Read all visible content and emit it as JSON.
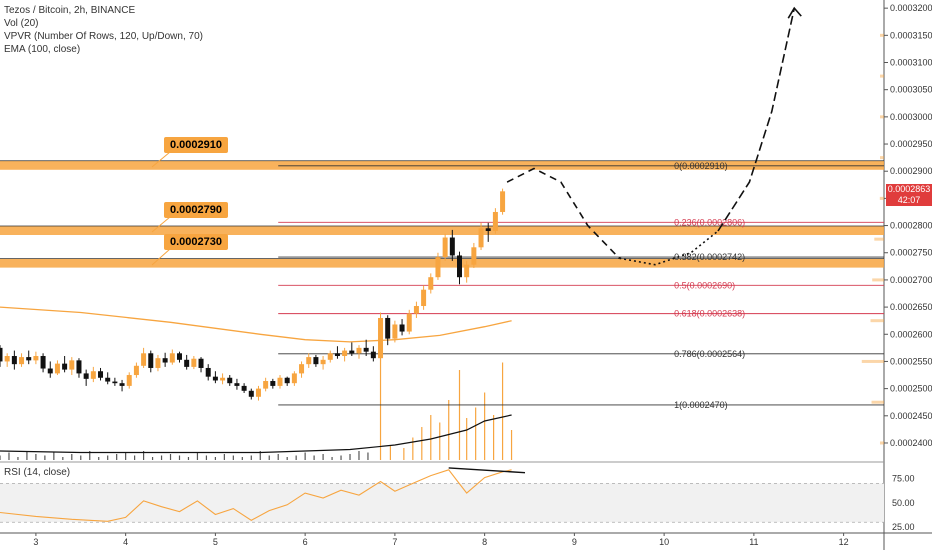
{
  "chart_data": {
    "type": "candlestick",
    "title": "Tezos / Bitcoin, 2h, BINANCE",
    "indicators": [
      "Vol (20)",
      "VPVR (Number Of Rows, 120, Up/Down, 70)",
      "EMA (100, close)"
    ],
    "price_axis": {
      "ticks": [
        "0.0003200",
        "0.0003150",
        "0.0003100",
        "0.0003050",
        "0.0003000",
        "0.0002950",
        "0.0002900",
        "0.0002850",
        "0.0002800",
        "0.0002750",
        "0.0002700",
        "0.0002650",
        "0.0002600",
        "0.0002550",
        "0.0002500",
        "0.0002450",
        "0.0002400"
      ],
      "ylim": [
        0.0002365,
        0.0003215
      ]
    },
    "x_axis": {
      "ticks": [
        "3",
        "4",
        "5",
        "6",
        "7",
        "8",
        "9",
        "10",
        "11",
        "12"
      ],
      "range": [
        2.6,
        12.45
      ]
    },
    "current_price": {
      "value": "0.0002863",
      "countdown": "42:07",
      "color": "#e03c3c"
    },
    "zones": [
      {
        "label": "0.0002910",
        "value": 0.000291
      },
      {
        "label": "0.0002790",
        "value": 0.000279
      },
      {
        "label": "0.0002730",
        "value": 0.000273
      }
    ],
    "fib_levels": [
      {
        "label": "0(0.0002910)",
        "value": 0.000291,
        "color": "#333333"
      },
      {
        "label": "0.236(0.0002806)",
        "value": 0.0002806,
        "color": "#d43a4f"
      },
      {
        "label": "0.382(0.0002742)",
        "value": 0.0002742,
        "color": "#333333"
      },
      {
        "label": "0.5(0.0002690)",
        "value": 0.000269,
        "color": "#d43a4f"
      },
      {
        "label": "0.618(0.0002638)",
        "value": 0.0002638,
        "color": "#d43a4f"
      },
      {
        "label": "0.786(0.0002564)",
        "value": 0.0002564,
        "color": "#333333"
      },
      {
        "label": "1(0.0002470)",
        "value": 0.000247,
        "color": "#333333"
      }
    ],
    "candles": [
      {
        "t": 2.6,
        "o": 0.0002575,
        "h": 0.000258,
        "l": 0.000254,
        "c": 0.000255
      },
      {
        "t": 2.68,
        "o": 0.000255,
        "h": 0.0002565,
        "l": 0.000254,
        "c": 0.000256
      },
      {
        "t": 2.76,
        "o": 0.000256,
        "h": 0.000257,
        "l": 0.0002535,
        "c": 0.0002545
      },
      {
        "t": 2.84,
        "o": 0.0002545,
        "h": 0.0002565,
        "l": 0.000254,
        "c": 0.0002558
      },
      {
        "t": 2.92,
        "o": 0.0002558,
        "h": 0.000257,
        "l": 0.0002545,
        "c": 0.0002552
      },
      {
        "t": 3.0,
        "o": 0.0002552,
        "h": 0.0002568,
        "l": 0.0002545,
        "c": 0.000256
      },
      {
        "t": 3.08,
        "o": 0.000256,
        "h": 0.0002565,
        "l": 0.000253,
        "c": 0.0002537
      },
      {
        "t": 3.16,
        "o": 0.0002537,
        "h": 0.000255,
        "l": 0.000252,
        "c": 0.0002528
      },
      {
        "t": 3.24,
        "o": 0.0002528,
        "h": 0.0002552,
        "l": 0.0002525,
        "c": 0.0002546
      },
      {
        "t": 3.32,
        "o": 0.0002546,
        "h": 0.000256,
        "l": 0.000253,
        "c": 0.0002535
      },
      {
        "t": 3.4,
        "o": 0.0002535,
        "h": 0.0002558,
        "l": 0.0002525,
        "c": 0.0002552
      },
      {
        "t": 3.48,
        "o": 0.0002552,
        "h": 0.0002556,
        "l": 0.000252,
        "c": 0.0002528
      },
      {
        "t": 3.56,
        "o": 0.0002528,
        "h": 0.0002535,
        "l": 0.0002505,
        "c": 0.0002518
      },
      {
        "t": 3.64,
        "o": 0.0002518,
        "h": 0.000254,
        "l": 0.0002512,
        "c": 0.0002532
      },
      {
        "t": 3.72,
        "o": 0.0002532,
        "h": 0.0002538,
        "l": 0.0002515,
        "c": 0.000252
      },
      {
        "t": 3.8,
        "o": 0.000252,
        "h": 0.000253,
        "l": 0.0002508,
        "c": 0.0002513
      },
      {
        "t": 3.88,
        "o": 0.0002513,
        "h": 0.000252,
        "l": 0.0002505,
        "c": 0.000251
      },
      {
        "t": 3.96,
        "o": 0.000251,
        "h": 0.0002516,
        "l": 0.0002495,
        "c": 0.0002505
      },
      {
        "t": 4.04,
        "o": 0.0002505,
        "h": 0.000253,
        "l": 0.00025,
        "c": 0.0002525
      },
      {
        "t": 4.12,
        "o": 0.0002525,
        "h": 0.0002548,
        "l": 0.000252,
        "c": 0.0002542
      },
      {
        "t": 4.2,
        "o": 0.0002542,
        "h": 0.0002575,
        "l": 0.0002538,
        "c": 0.0002565
      },
      {
        "t": 4.28,
        "o": 0.0002565,
        "h": 0.000257,
        "l": 0.000253,
        "c": 0.0002538
      },
      {
        "t": 4.36,
        "o": 0.0002538,
        "h": 0.0002562,
        "l": 0.0002532,
        "c": 0.0002556
      },
      {
        "t": 4.44,
        "o": 0.0002556,
        "h": 0.0002566,
        "l": 0.000254,
        "c": 0.0002548
      },
      {
        "t": 4.52,
        "o": 0.0002548,
        "h": 0.0002572,
        "l": 0.0002544,
        "c": 0.0002565
      },
      {
        "t": 4.6,
        "o": 0.0002565,
        "h": 0.0002568,
        "l": 0.0002548,
        "c": 0.0002553
      },
      {
        "t": 4.68,
        "o": 0.0002553,
        "h": 0.0002562,
        "l": 0.0002535,
        "c": 0.000254
      },
      {
        "t": 4.76,
        "o": 0.000254,
        "h": 0.000256,
        "l": 0.0002536,
        "c": 0.0002555
      },
      {
        "t": 4.84,
        "o": 0.0002555,
        "h": 0.0002558,
        "l": 0.000253,
        "c": 0.0002538
      },
      {
        "t": 4.92,
        "o": 0.0002538,
        "h": 0.0002545,
        "l": 0.0002515,
        "c": 0.0002522
      },
      {
        "t": 5.0,
        "o": 0.0002522,
        "h": 0.0002532,
        "l": 0.000251,
        "c": 0.0002515
      },
      {
        "t": 5.08,
        "o": 0.0002515,
        "h": 0.0002528,
        "l": 0.0002508,
        "c": 0.000252
      },
      {
        "t": 5.16,
        "o": 0.000252,
        "h": 0.0002525,
        "l": 0.0002505,
        "c": 0.000251
      },
      {
        "t": 5.24,
        "o": 0.000251,
        "h": 0.0002518,
        "l": 0.0002498,
        "c": 0.0002505
      },
      {
        "t": 5.32,
        "o": 0.0002505,
        "h": 0.000251,
        "l": 0.0002492,
        "c": 0.0002496
      },
      {
        "t": 5.4,
        "o": 0.0002496,
        "h": 0.00025,
        "l": 0.000248,
        "c": 0.0002485
      },
      {
        "t": 5.48,
        "o": 0.0002485,
        "h": 0.0002505,
        "l": 0.0002478,
        "c": 0.00025
      },
      {
        "t": 5.56,
        "o": 0.00025,
        "h": 0.000252,
        "l": 0.0002495,
        "c": 0.0002514
      },
      {
        "t": 5.64,
        "o": 0.0002514,
        "h": 0.0002518,
        "l": 0.00025,
        "c": 0.0002505
      },
      {
        "t": 5.72,
        "o": 0.0002505,
        "h": 0.0002525,
        "l": 0.00025,
        "c": 0.000252
      },
      {
        "t": 5.8,
        "o": 0.000252,
        "h": 0.0002522,
        "l": 0.0002505,
        "c": 0.000251
      },
      {
        "t": 5.88,
        "o": 0.000251,
        "h": 0.0002532,
        "l": 0.0002505,
        "c": 0.0002528
      },
      {
        "t": 5.96,
        "o": 0.0002528,
        "h": 0.000255,
        "l": 0.000252,
        "c": 0.0002545
      },
      {
        "t": 6.04,
        "o": 0.0002545,
        "h": 0.0002565,
        "l": 0.0002538,
        "c": 0.0002558
      },
      {
        "t": 6.12,
        "o": 0.0002558,
        "h": 0.0002562,
        "l": 0.000254,
        "c": 0.0002545
      },
      {
        "t": 6.2,
        "o": 0.0002545,
        "h": 0.000256,
        "l": 0.0002535,
        "c": 0.0002553
      },
      {
        "t": 6.28,
        "o": 0.0002553,
        "h": 0.000257,
        "l": 0.0002548,
        "c": 0.0002565
      },
      {
        "t": 6.36,
        "o": 0.0002565,
        "h": 0.0002578,
        "l": 0.0002555,
        "c": 0.000256
      },
      {
        "t": 6.44,
        "o": 0.000256,
        "h": 0.0002575,
        "l": 0.000255,
        "c": 0.000257
      },
      {
        "t": 6.52,
        "o": 0.000257,
        "h": 0.0002585,
        "l": 0.000256,
        "c": 0.0002565
      },
      {
        "t": 6.6,
        "o": 0.0002565,
        "h": 0.000258,
        "l": 0.0002555,
        "c": 0.0002575
      },
      {
        "t": 6.68,
        "o": 0.0002575,
        "h": 0.000259,
        "l": 0.000256,
        "c": 0.0002568
      },
      {
        "t": 6.76,
        "o": 0.0002568,
        "h": 0.0002578,
        "l": 0.000255,
        "c": 0.0002556
      },
      {
        "t": 6.84,
        "o": 0.0002556,
        "h": 0.000264,
        "l": 0.000255,
        "c": 0.000263
      },
      {
        "t": 6.92,
        "o": 0.000263,
        "h": 0.0002635,
        "l": 0.000258,
        "c": 0.0002592
      },
      {
        "t": 7.0,
        "o": 0.0002592,
        "h": 0.0002625,
        "l": 0.0002585,
        "c": 0.0002618
      },
      {
        "t": 7.08,
        "o": 0.0002618,
        "h": 0.0002628,
        "l": 0.0002598,
        "c": 0.0002605
      },
      {
        "t": 7.16,
        "o": 0.0002605,
        "h": 0.0002645,
        "l": 0.00026,
        "c": 0.0002638
      },
      {
        "t": 7.24,
        "o": 0.0002638,
        "h": 0.000266,
        "l": 0.000263,
        "c": 0.0002652
      },
      {
        "t": 7.32,
        "o": 0.0002652,
        "h": 0.000269,
        "l": 0.0002645,
        "c": 0.0002682
      },
      {
        "t": 7.4,
        "o": 0.0002682,
        "h": 0.0002712,
        "l": 0.0002675,
        "c": 0.0002705
      },
      {
        "t": 7.48,
        "o": 0.0002705,
        "h": 0.000275,
        "l": 0.00027,
        "c": 0.0002742
      },
      {
        "t": 7.56,
        "o": 0.0002742,
        "h": 0.0002785,
        "l": 0.0002735,
        "c": 0.0002778
      },
      {
        "t": 7.64,
        "o": 0.0002778,
        "h": 0.0002792,
        "l": 0.0002735,
        "c": 0.0002745
      },
      {
        "t": 7.72,
        "o": 0.0002745,
        "h": 0.0002752,
        "l": 0.0002692,
        "c": 0.0002705
      },
      {
        "t": 7.8,
        "o": 0.0002705,
        "h": 0.0002735,
        "l": 0.0002695,
        "c": 0.0002728
      },
      {
        "t": 7.88,
        "o": 0.0002728,
        "h": 0.0002768,
        "l": 0.0002722,
        "c": 0.000276
      },
      {
        "t": 7.96,
        "o": 0.000276,
        "h": 0.0002805,
        "l": 0.0002755,
        "c": 0.0002795
      },
      {
        "t": 8.04,
        "o": 0.0002795,
        "h": 0.0002805,
        "l": 0.000277,
        "c": 0.000279
      },
      {
        "t": 8.12,
        "o": 0.000279,
        "h": 0.0002832,
        "l": 0.0002785,
        "c": 0.0002825
      },
      {
        "t": 8.2,
        "o": 0.0002825,
        "h": 0.0002868,
        "l": 0.000282,
        "c": 0.0002863
      }
    ],
    "ema100": [
      [
        2.6,
        0.000265
      ],
      [
        3.5,
        0.000264
      ],
      [
        4.5,
        0.0002622
      ],
      [
        5.5,
        0.00026
      ],
      [
        6.0,
        0.000259
      ],
      [
        6.5,
        0.0002586
      ],
      [
        7.0,
        0.000259
      ],
      [
        7.5,
        0.0002598
      ],
      [
        8.0,
        0.0002614
      ],
      [
        8.3,
        0.0002625
      ]
    ],
    "projection_dashed": [
      [
        8.25,
        0.000288
      ],
      [
        8.55,
        0.0002905
      ],
      [
        8.85,
        0.000288
      ],
      [
        9.15,
        0.00028
      ],
      [
        9.5,
        0.000274
      ]
    ],
    "projection_dotted": [
      [
        9.5,
        0.000274
      ],
      [
        9.9,
        0.0002728
      ],
      [
        10.3,
        0.000275
      ],
      [
        10.6,
        0.000279
      ]
    ],
    "projection_up": [
      [
        10.6,
        0.000279
      ],
      [
        10.95,
        0.000288
      ],
      [
        11.2,
        0.000301
      ],
      [
        11.45,
        0.00032
      ]
    ],
    "rsi": {
      "label": "RSI (14, close)",
      "ticks": [
        "75.00",
        "50.00",
        "25.00"
      ],
      "ylim": [
        22,
        90
      ],
      "band": [
        30,
        70
      ],
      "values": [
        [
          2.6,
          40
        ],
        [
          3.0,
          36
        ],
        [
          3.4,
          33
        ],
        [
          3.8,
          31
        ],
        [
          4.0,
          35
        ],
        [
          4.2,
          52
        ],
        [
          4.4,
          46
        ],
        [
          4.6,
          41
        ],
        [
          4.8,
          52
        ],
        [
          5.0,
          38
        ],
        [
          5.2,
          44
        ],
        [
          5.4,
          32
        ],
        [
          5.6,
          42
        ],
        [
          5.8,
          48
        ],
        [
          6.0,
          60
        ],
        [
          6.2,
          55
        ],
        [
          6.4,
          63
        ],
        [
          6.6,
          58
        ],
        [
          6.84,
          72
        ],
        [
          7.0,
          62
        ],
        [
          7.2,
          70
        ],
        [
          7.4,
          78
        ],
        [
          7.6,
          84
        ],
        [
          7.7,
          72
        ],
        [
          7.8,
          60
        ],
        [
          8.0,
          76
        ],
        [
          8.2,
          82
        ],
        [
          8.3,
          84
        ]
      ],
      "divergence": [
        [
          7.6,
          86
        ],
        [
          8.45,
          81
        ]
      ]
    },
    "volume": [
      [
        2.6,
        3
      ],
      [
        2.7,
        5
      ],
      [
        2.8,
        2
      ],
      [
        2.9,
        6
      ],
      [
        3.0,
        4
      ],
      [
        3.1,
        3
      ],
      [
        3.2,
        5
      ],
      [
        3.3,
        2
      ],
      [
        3.4,
        4
      ],
      [
        3.5,
        3
      ],
      [
        3.6,
        6
      ],
      [
        3.7,
        2
      ],
      [
        3.8,
        3
      ],
      [
        3.9,
        4
      ],
      [
        4.0,
        5
      ],
      [
        4.1,
        3
      ],
      [
        4.2,
        6
      ],
      [
        4.3,
        2
      ],
      [
        4.4,
        3
      ],
      [
        4.5,
        4
      ],
      [
        4.6,
        3
      ],
      [
        4.7,
        2
      ],
      [
        4.8,
        5
      ],
      [
        4.9,
        3
      ],
      [
        5.0,
        2
      ],
      [
        5.1,
        4
      ],
      [
        5.2,
        3
      ],
      [
        5.3,
        2
      ],
      [
        5.4,
        3
      ],
      [
        5.5,
        6
      ],
      [
        5.6,
        3
      ],
      [
        5.7,
        4
      ],
      [
        5.8,
        2
      ],
      [
        5.9,
        3
      ],
      [
        6.0,
        5
      ],
      [
        6.1,
        3
      ],
      [
        6.2,
        4
      ],
      [
        6.3,
        2
      ],
      [
        6.4,
        3
      ],
      [
        6.5,
        4
      ],
      [
        6.6,
        6
      ],
      [
        6.7,
        5
      ],
      [
        6.84,
        68
      ],
      [
        6.95,
        10
      ],
      [
        7.1,
        8
      ],
      [
        7.2,
        15
      ],
      [
        7.3,
        22
      ],
      [
        7.4,
        30
      ],
      [
        7.5,
        25
      ],
      [
        7.6,
        40
      ],
      [
        7.72,
        60
      ],
      [
        7.8,
        28
      ],
      [
        7.9,
        35
      ],
      [
        8.0,
        45
      ],
      [
        8.1,
        30
      ],
      [
        8.2,
        65
      ],
      [
        8.3,
        20
      ]
    ],
    "vol_ma": [
      [
        2.6,
        6
      ],
      [
        3.5,
        5
      ],
      [
        4.5,
        5
      ],
      [
        5.5,
        5
      ],
      [
        6.0,
        6
      ],
      [
        6.5,
        7
      ],
      [
        7.0,
        10
      ],
      [
        7.4,
        14
      ],
      [
        7.8,
        20
      ],
      [
        8.0,
        26
      ],
      [
        8.3,
        30
      ]
    ]
  }
}
